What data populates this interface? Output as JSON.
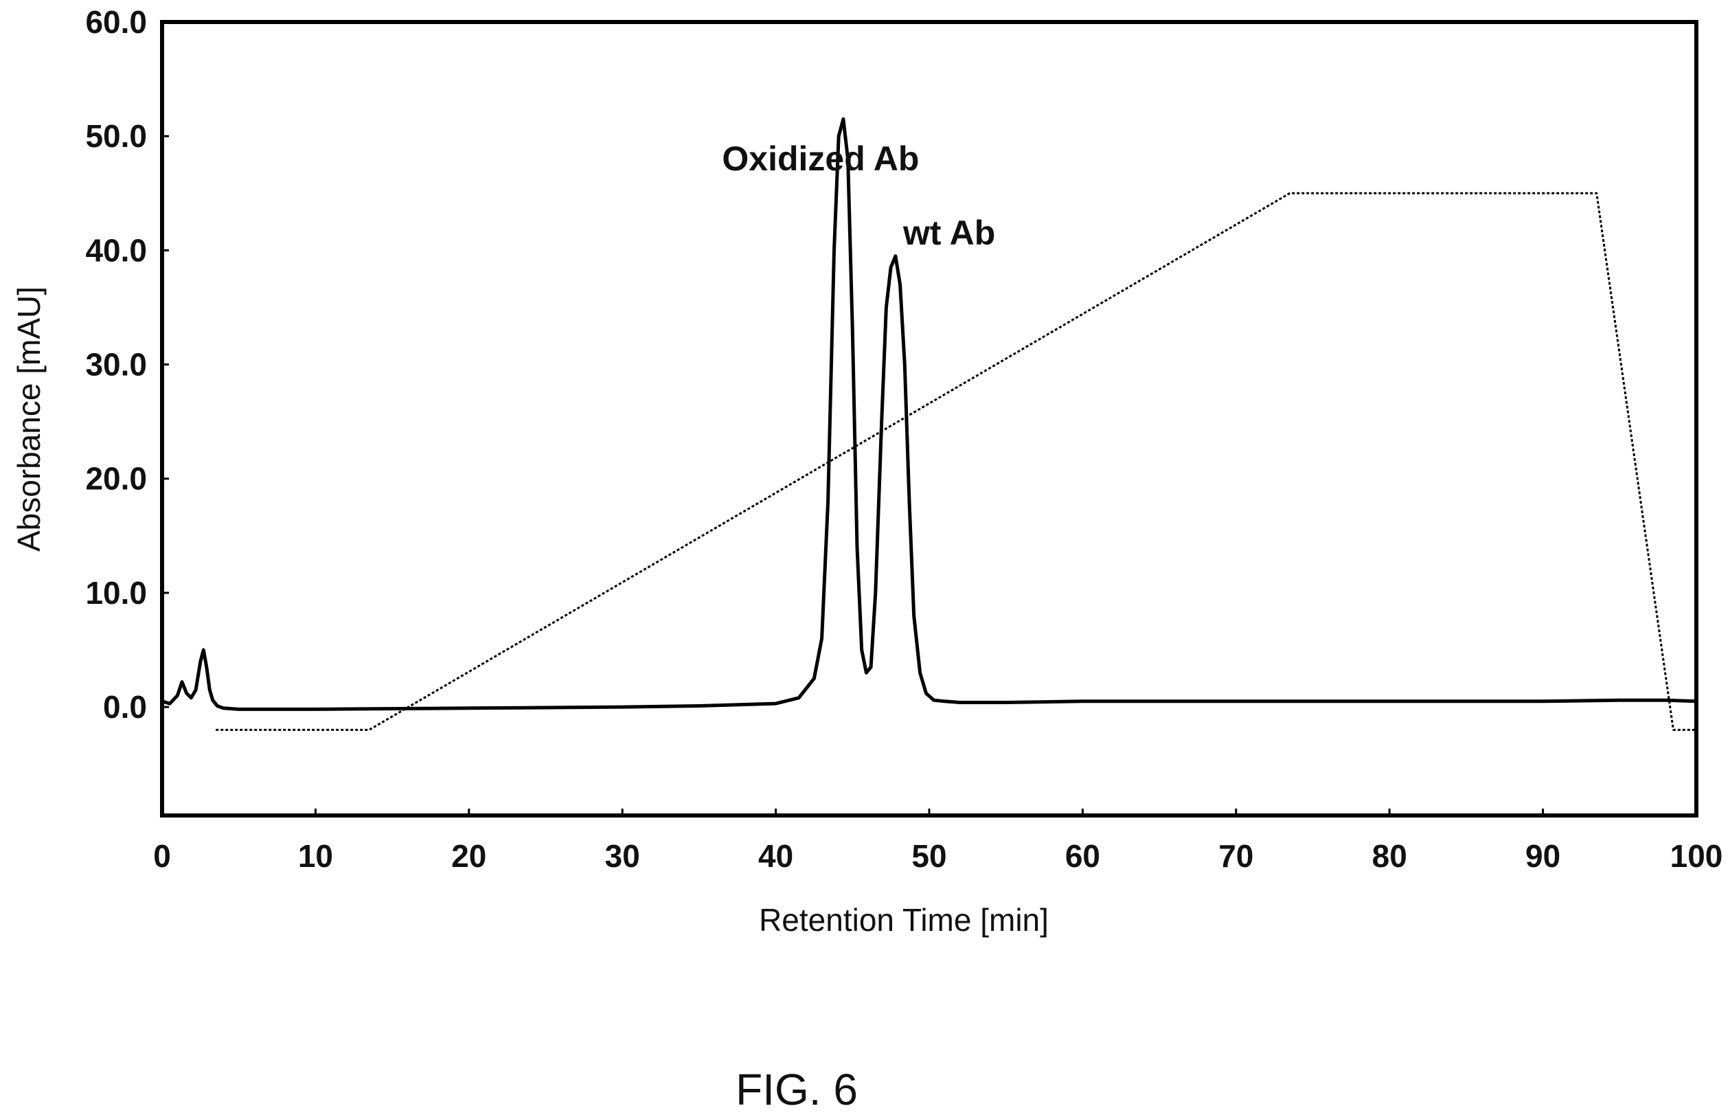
{
  "chart_data": {
    "type": "line",
    "title": "",
    "xlabel": "Retention Time [min]",
    "ylabel": "Absorbance [mAU]",
    "xlim": [
      0,
      100
    ],
    "ylim": [
      -9.5,
      60
    ],
    "x_ticks": [
      0,
      10,
      20,
      30,
      40,
      50,
      60,
      70,
      80,
      90,
      100
    ],
    "x_tick_labels": [
      "0",
      "10",
      "20",
      "30",
      "40",
      "50",
      "60",
      "70",
      "80",
      "90",
      "100"
    ],
    "y_ticks": [
      0,
      10,
      20,
      30,
      40,
      50,
      60
    ],
    "y_tick_labels": [
      "0.0",
      "10.0",
      "20.0",
      "30.0",
      "40.0",
      "50.0",
      "60.0"
    ],
    "grid": false,
    "series": [
      {
        "style": "solid",
        "color": "#000000",
        "x": [
          0,
          0.5,
          1.0,
          1.3,
          1.6,
          1.9,
          2.2,
          2.5,
          2.7,
          2.9,
          3.1,
          3.3,
          3.6,
          4.0,
          5,
          10,
          20,
          30,
          35,
          40,
          41.5,
          42.5,
          43.0,
          43.4,
          43.8,
          44.1,
          44.4,
          44.7,
          45.0,
          45.3,
          45.6,
          45.9,
          46.2,
          46.5,
          46.9,
          47.2,
          47.5,
          47.8,
          48.1,
          48.4,
          48.7,
          49.0,
          49.4,
          49.8,
          50.3,
          51,
          52,
          55,
          60,
          70,
          80,
          90,
          95,
          98,
          100
        ],
        "y": [
          0.5,
          0.3,
          1.0,
          2.2,
          1.2,
          0.8,
          1.5,
          4.0,
          5.0,
          3.5,
          1.5,
          0.6,
          0.1,
          -0.1,
          -0.2,
          -0.2,
          -0.1,
          0.0,
          0.1,
          0.3,
          0.8,
          2.5,
          6.0,
          18.0,
          40.0,
          50.0,
          51.5,
          48.0,
          33.0,
          14.0,
          5.0,
          3.0,
          3.5,
          10.0,
          25.0,
          35.0,
          38.5,
          39.5,
          37.0,
          30.0,
          18.0,
          8.0,
          3.0,
          1.2,
          0.6,
          0.5,
          0.4,
          0.4,
          0.5,
          0.5,
          0.5,
          0.5,
          0.6,
          0.6,
          0.5
        ]
      },
      {
        "style": "dotted",
        "color": "#000000",
        "x": [
          3.5,
          13.5,
          73.5,
          93.5,
          98.5,
          100
        ],
        "y": [
          -2,
          -2,
          45,
          45,
          -2,
          -2
        ]
      }
    ],
    "annotations": [
      {
        "text": "Oxidized Ab",
        "x": 36.5,
        "y": 47
      },
      {
        "text": "wt Ab",
        "x": 48.3,
        "y": 40.5
      }
    ]
  },
  "caption": "FIG. 6"
}
